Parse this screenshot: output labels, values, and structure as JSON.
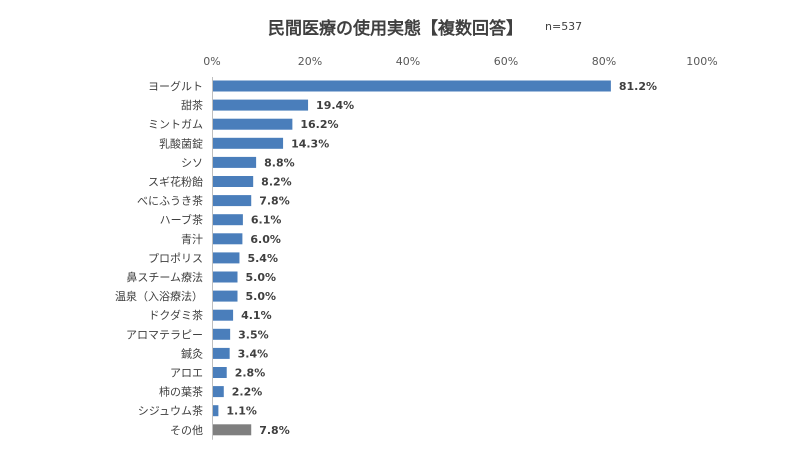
{
  "chart_data": {
    "type": "bar",
    "orientation": "horizontal",
    "title": "民間医療の使用実態【複数回答】",
    "sample_size_label": "n=537",
    "xlim": [
      0,
      100
    ],
    "x_ticks": [
      "0%",
      "20%",
      "40%",
      "60%",
      "80%",
      "100%"
    ],
    "grid": false,
    "categories": [
      "ヨーグルト",
      "甜茶",
      "ミントガム",
      "乳酸菌錠",
      "シソ",
      "スギ花粉飴",
      "べにふうき茶",
      "ハーブ茶",
      "青汁",
      "プロポリス",
      "鼻スチーム療法",
      "温泉（入浴療法）",
      "ドクダミ茶",
      "アロマテラピー",
      "鍼灸",
      "アロエ",
      "柿の葉茶",
      "シジュウム茶",
      "その他"
    ],
    "values": [
      81.2,
      19.4,
      16.2,
      14.3,
      8.8,
      8.2,
      7.8,
      6.1,
      6.0,
      5.4,
      5.0,
      5.0,
      4.1,
      3.5,
      3.4,
      2.8,
      2.2,
      1.1,
      7.8
    ],
    "value_labels": [
      "81.2%",
      "19.4%",
      "16.2%",
      "14.3%",
      "8.8%",
      "8.2%",
      "7.8%",
      "6.1%",
      "6.0%",
      "5.4%",
      "5.0%",
      "5.0%",
      "4.1%",
      "3.5%",
      "3.4%",
      "2.8%",
      "2.2%",
      "1.1%",
      "7.8%"
    ],
    "colors": {
      "main": "#4A7EBB",
      "other": "#7F7F7F"
    }
  }
}
